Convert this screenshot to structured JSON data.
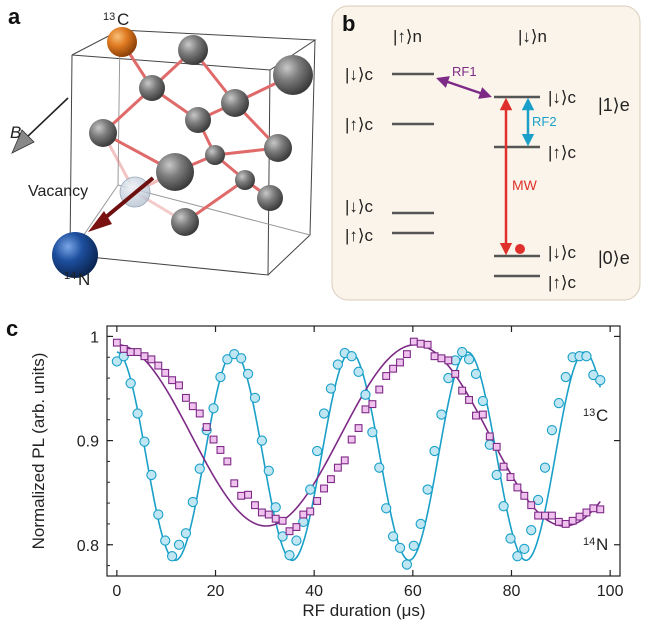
{
  "panel_a": {
    "letter": "a",
    "c13_label": "13C",
    "c13_sup": "13",
    "c13_main": "C",
    "n14_sup": "14",
    "n14_main": "N",
    "vacancy_label": "Vacancy",
    "b_label": "B",
    "colors": {
      "carbon13": "#e07b22",
      "nitrogen": "#1d4f9e",
      "carbon": "#666666",
      "bond": "#e06a6a"
    }
  },
  "panel_b": {
    "letter": "b",
    "col_up_n": "|↑⟩n",
    "col_down_n": "|↓⟩n",
    "level_labels": [
      "|↓⟩c",
      "|↑⟩c",
      "|↓⟩c",
      "|↑⟩c",
      "|↓⟩c",
      "|↑⟩c",
      "|↓⟩c",
      "|↑⟩c"
    ],
    "rf1": "RF1",
    "rf2": "RF2",
    "mw": "MW",
    "e1": "|1⟩e",
    "e0": "|0⟩e",
    "colors": {
      "background": "#fbf4ea",
      "rf1": "#7d2a86",
      "rf2": "#1aa0c8",
      "mw": "#e0302c"
    }
  },
  "panel_c": {
    "letter": "c",
    "chart_data": {
      "type": "scatter",
      "xlabel": "RF duration (μs)",
      "ylabel": "Normalized PL (arb. units)",
      "xlim": [
        -2,
        102
      ],
      "ylim": [
        0.77,
        1.01
      ],
      "xticks": [
        0,
        20,
        40,
        60,
        80,
        100
      ],
      "yticks": [
        0.8,
        0.9,
        1
      ],
      "ytick_labels": [
        "0.8",
        "0.9",
        "1"
      ],
      "annotations": [
        "13C",
        "14N"
      ],
      "series": [
        {
          "color": "#1aa0c8",
          "marker": "circle",
          "fit": {
            "offset": 0.885,
            "amplitude": 0.1,
            "period": 23.7
          },
          "x": [
            0,
            1.4,
            2.8,
            4.2,
            5.6,
            7.0,
            8.4,
            9.8,
            11.2,
            12.6,
            14.0,
            15.4,
            16.8,
            18.2,
            19.6,
            21.0,
            22.4,
            23.8,
            25.2,
            26.6,
            28.0,
            29.4,
            30.8,
            32.2,
            33.6,
            35.0,
            36.4,
            37.8,
            39.2,
            40.6,
            42.0,
            43.4,
            44.8,
            46.2,
            47.6,
            49.0,
            50.4,
            51.8,
            53.2,
            54.6,
            56.0,
            57.4,
            58.8,
            60.2,
            61.6,
            63.0,
            64.4,
            65.8,
            67.2,
            68.6,
            70.0,
            71.4,
            72.8,
            74.2,
            75.6,
            77.0,
            78.4,
            79.8,
            81.2,
            82.6,
            84.0,
            85.4,
            86.8,
            88.2,
            89.6,
            91.0,
            92.4,
            93.8,
            95.2,
            96.6,
            98.0
          ],
          "y": [
            0.976,
            0.981,
            0.955,
            0.926,
            0.899,
            0.867,
            0.829,
            0.804,
            0.789,
            0.8,
            0.811,
            0.841,
            0.873,
            0.91,
            0.931,
            0.961,
            0.978,
            0.983,
            0.979,
            0.964,
            0.941,
            0.9,
            0.871,
            0.836,
            0.808,
            0.79,
            0.804,
            0.822,
            0.853,
            0.89,
            0.926,
            0.95,
            0.973,
            0.984,
            0.981,
            0.966,
            0.944,
            0.908,
            0.874,
            0.835,
            0.808,
            0.797,
            0.781,
            0.799,
            0.82,
            0.853,
            0.89,
            0.925,
            0.96,
            0.977,
            0.985,
            0.978,
            0.964,
            0.938,
            0.896,
            0.867,
            0.837,
            0.806,
            0.789,
            0.796,
            0.814,
            0.843,
            0.874,
            0.91,
            0.936,
            0.961,
            0.98,
            0.981,
            0.981,
            0.963,
            0.958
          ]
        },
        {
          "color": "#7d2a86",
          "marker": "square",
          "fit": {
            "offset": 0.905,
            "amplitude": 0.087,
            "period": 60.5
          },
          "x": [
            0,
            1.4,
            2.8,
            4.2,
            5.6,
            7.0,
            8.4,
            9.8,
            11.2,
            12.6,
            14.0,
            15.4,
            16.8,
            18.2,
            19.6,
            21.0,
            22.4,
            23.8,
            25.2,
            26.6,
            28.0,
            29.4,
            30.8,
            32.2,
            33.6,
            35.0,
            36.4,
            37.8,
            39.2,
            40.6,
            42.0,
            43.4,
            44.8,
            46.2,
            47.6,
            49.0,
            50.4,
            51.8,
            53.2,
            54.6,
            56.0,
            57.4,
            58.8,
            60.2,
            61.6,
            63.0,
            64.4,
            65.8,
            67.2,
            68.6,
            70.0,
            71.4,
            72.8,
            74.2,
            75.6,
            77.0,
            78.4,
            79.8,
            81.2,
            82.6,
            84.0,
            85.4,
            86.8,
            88.2,
            89.6,
            91.0,
            92.4,
            93.8,
            95.2,
            96.6,
            98.0
          ],
          "y": [
            0.994,
            0.988,
            0.985,
            0.985,
            0.981,
            0.978,
            0.972,
            0.965,
            0.958,
            0.953,
            0.941,
            0.933,
            0.926,
            0.913,
            0.901,
            0.891,
            0.88,
            0.859,
            0.847,
            0.848,
            0.838,
            0.831,
            0.829,
            0.825,
            0.823,
            0.813,
            0.817,
            0.829,
            0.832,
            0.842,
            0.854,
            0.863,
            0.874,
            0.881,
            0.901,
            0.912,
            0.93,
            0.935,
            0.949,
            0.962,
            0.969,
            0.975,
            0.983,
            0.995,
            0.993,
            0.992,
            0.981,
            0.979,
            0.977,
            0.964,
            0.948,
            0.939,
            0.924,
            0.925,
            0.904,
            0.894,
            0.875,
            0.865,
            0.855,
            0.847,
            0.838,
            0.828,
            0.828,
            0.828,
            0.822,
            0.82,
            0.823,
            0.827,
            0.831,
            0.835,
            0.834
          ]
        }
      ]
    }
  }
}
